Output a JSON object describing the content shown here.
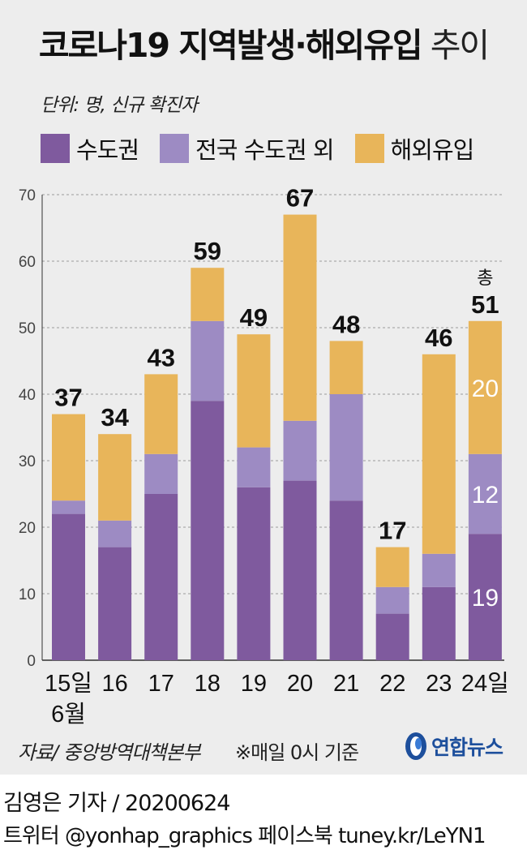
{
  "title": {
    "bold": "코로나19 지역발생·해외유입",
    "light": "추이"
  },
  "unit_label": "단위: 명, 신규 확진자",
  "legend": [
    {
      "label": "수도권",
      "color": "#7f5a9e"
    },
    {
      "label": "전국 수도권 외",
      "color": "#9d8bc3"
    },
    {
      "label": "해외유입",
      "color": "#e8b55a"
    }
  ],
  "chart_data": {
    "type": "bar",
    "stacked": true,
    "categories": [
      "15일",
      "16",
      "17",
      "18",
      "19",
      "20",
      "21",
      "22",
      "23",
      "24일"
    ],
    "month_label": "6월",
    "series": [
      {
        "name": "수도권",
        "values": [
          22,
          17,
          25,
          39,
          26,
          27,
          24,
          7,
          11,
          19
        ],
        "color": "#7f5a9e"
      },
      {
        "name": "전국 수도권 외",
        "values": [
          2,
          4,
          6,
          12,
          6,
          9,
          16,
          4,
          5,
          12
        ],
        "color": "#9d8bc3"
      },
      {
        "name": "해외유입",
        "values": [
          13,
          13,
          12,
          8,
          17,
          31,
          8,
          6,
          30,
          20
        ],
        "color": "#e8b55a"
      }
    ],
    "totals": [
      37,
      34,
      43,
      59,
      49,
      67,
      48,
      17,
      46,
      51
    ],
    "total_prefix_last": "총",
    "inner_labels_last": [
      "19",
      "12",
      "20"
    ],
    "yticks": [
      0,
      10,
      20,
      30,
      40,
      50,
      60,
      70
    ],
    "ylim": [
      0,
      70
    ],
    "grid": "dashed"
  },
  "source": "자료/ 중앙방역대책본부",
  "note": "※매일 0시 기준",
  "logo_text": "연합뉴스",
  "byline": "김영은 기자 / 20200624",
  "social": "트위터 @yonhap_graphics  페이스북 tuney.kr/LeYN1"
}
